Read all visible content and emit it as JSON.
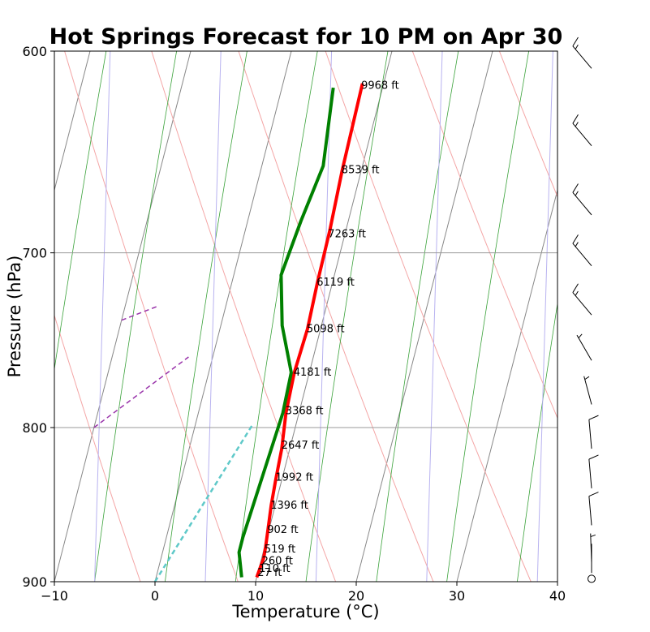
{
  "chart_data": {
    "type": "line",
    "title": "Hot Springs Forecast for 10 PM on Apr 30",
    "xlabel": "Temperature ($^\\circ$C)",
    "xlabel_display": "Temperature (°C)",
    "ylabel": "Pressure (hPa)",
    "xlim": [
      -10,
      40
    ],
    "ylim": [
      900,
      600
    ],
    "y_scale": "log",
    "xticks": [
      -10,
      0,
      10,
      20,
      30,
      40
    ],
    "yticks": [
      600,
      700,
      800,
      900
    ],
    "grid": true,
    "skew": "skew-T",
    "series": [
      {
        "kind": "temperature",
        "color": "#ff0000",
        "points": [
          {
            "p": 897,
            "t": 10.0
          },
          {
            "p": 890,
            "t": 10.1
          },
          {
            "p": 884,
            "t": 10.2
          },
          {
            "p": 876,
            "t": 10.1
          },
          {
            "p": 865,
            "t": 9.9
          },
          {
            "p": 849,
            "t": 9.6
          },
          {
            "p": 833,
            "t": 9.4
          },
          {
            "p": 813,
            "t": 9.2
          },
          {
            "p": 791,
            "t": 8.7
          },
          {
            "p": 767,
            "t": 8.5
          },
          {
            "p": 742,
            "t": 8.7
          },
          {
            "p": 716,
            "t": 8.5
          },
          {
            "p": 688,
            "t": 8.4
          },
          {
            "p": 657,
            "t": 8.1
          },
          {
            "p": 615,
            "t": 7.9
          }
        ]
      },
      {
        "kind": "dewpoint",
        "color": "#008000",
        "points": [
          {
            "p": 897,
            "t": 8.5
          },
          {
            "p": 880,
            "t": 7.6
          },
          {
            "p": 870,
            "t": 7.6
          },
          {
            "p": 791,
            "t": 8.4
          },
          {
            "p": 767,
            "t": 8.2
          },
          {
            "p": 740,
            "t": 6.1
          },
          {
            "p": 712,
            "t": 4.7
          },
          {
            "p": 683,
            "t": 5.3
          },
          {
            "p": 655,
            "t": 6.1
          },
          {
            "p": 617,
            "t": 5.1
          }
        ]
      },
      {
        "kind": "parcel-cyan-dashed",
        "color": "#5fc9c9",
        "points": [
          {
            "p": 900,
            "t": 0.0
          },
          {
            "p": 798,
            "t": 5.7
          }
        ]
      },
      {
        "kind": "parcel-purple-dashed",
        "color": "#9933aa",
        "points": [
          {
            "p": 800,
            "t": -10.0
          },
          {
            "p": 758,
            "t": -2.4
          }
        ]
      },
      {
        "kind": "parcel-purple-dashed-2",
        "color": "#9933aa",
        "points": [
          {
            "p": 737,
            "t": -10.0
          },
          {
            "p": 729,
            "t": -6.7
          }
        ]
      }
    ],
    "height_labels": [
      {
        "p": 616,
        "text": "9968 ft"
      },
      {
        "p": 657,
        "text": "8539 ft"
      },
      {
        "p": 690,
        "text": "7263 ft"
      },
      {
        "p": 716,
        "text": "6119 ft"
      },
      {
        "p": 742,
        "text": "5098 ft"
      },
      {
        "p": 767,
        "text": "4181 ft"
      },
      {
        "p": 790,
        "text": "3368 ft"
      },
      {
        "p": 811,
        "text": "2647 ft"
      },
      {
        "p": 831,
        "text": "1992 ft"
      },
      {
        "p": 849,
        "text": "1396 ft"
      },
      {
        "p": 865,
        "text": "902 ft"
      },
      {
        "p": 878,
        "text": "519 ft"
      },
      {
        "p": 886,
        "text": "260 ft"
      },
      {
        "p": 891,
        "text": "110 ft"
      },
      {
        "p": 894,
        "text": "27 ft"
      }
    ],
    "wind_barbs": [
      {
        "p": 608,
        "dir": 320,
        "kt": 15
      },
      {
        "p": 645,
        "dir": 320,
        "kt": 15
      },
      {
        "p": 680,
        "dir": 320,
        "kt": 15
      },
      {
        "p": 707,
        "dir": 320,
        "kt": 15
      },
      {
        "p": 734,
        "dir": 320,
        "kt": 15
      },
      {
        "p": 760,
        "dir": 330,
        "kt": 5
      },
      {
        "p": 786,
        "dir": 345,
        "kt": 5
      },
      {
        "p": 813,
        "dir": 355,
        "kt": 10
      },
      {
        "p": 838,
        "dir": 355,
        "kt": 10
      },
      {
        "p": 862,
        "dir": 355,
        "kt": 10
      },
      {
        "p": 887,
        "dir": 358,
        "kt": 5
      },
      {
        "p": 894,
        "dir": 0,
        "kt": 3
      },
      {
        "p": 898,
        "dir": 0,
        "kt": 0
      }
    ]
  }
}
